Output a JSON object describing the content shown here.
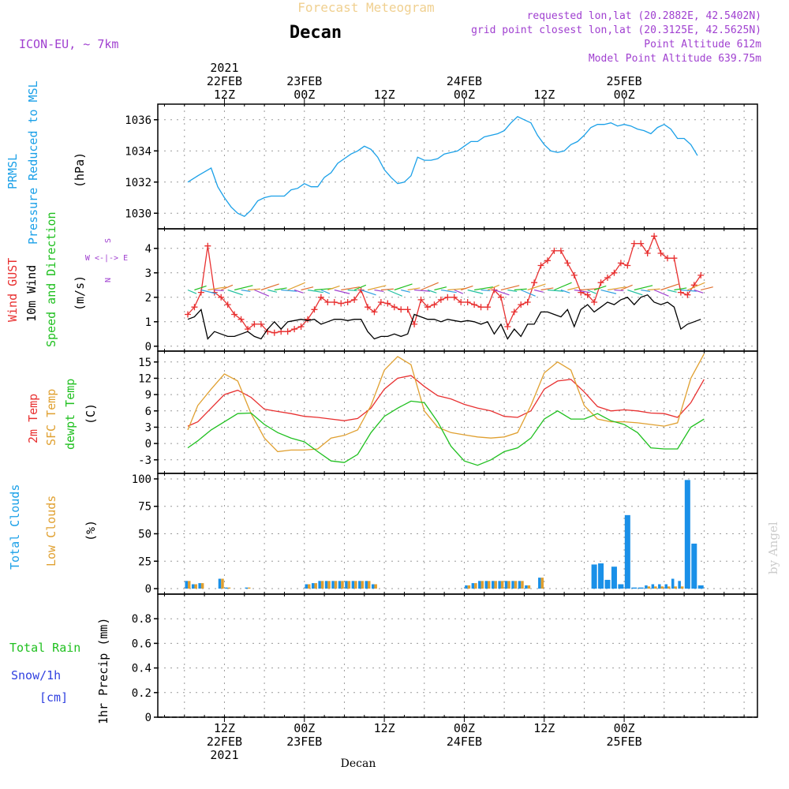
{
  "header": {
    "suptitle": "Forecast Meteogram",
    "title": "Decan",
    "model": "ICON-EU, ~ 7km",
    "requested": "requested lon,lat (20.2882E, 42.5402N)",
    "gridpoint": "grid point closest lon,lat (20.3125E, 42.5625N)",
    "point_alt": "Point Altitude 612m",
    "model_alt": "Model Point Altitude 639.75m",
    "credit": "by Angel",
    "footer": "Decan"
  },
  "colors": {
    "pressure": "#1aa0e8",
    "gust": "#e83030",
    "wind": "#000000",
    "green": "#20c020",
    "sfc": "#e0a030",
    "clouds_total": "#1a90e8",
    "clouds_low": "#e0a030",
    "snow": "#3040e0",
    "purple": "#a040d0"
  },
  "time_axis": {
    "x": [
      -10,
      80
    ],
    "top_ticks": [
      {
        "t": 0,
        "lines": [
          "2021",
          "22FEB",
          "12Z"
        ]
      },
      {
        "t": 12,
        "lines": [
          "23FEB",
          "00Z"
        ]
      },
      {
        "t": 24,
        "lines": [
          "12Z"
        ]
      },
      {
        "t": 36,
        "lines": [
          "24FEB",
          "00Z"
        ]
      },
      {
        "t": 48,
        "lines": [
          "12Z"
        ]
      },
      {
        "t": 60,
        "lines": [
          "25FEB",
          "00Z"
        ]
      }
    ],
    "bottom_ticks": [
      {
        "t": 0,
        "lines": [
          "12Z",
          "22FEB",
          "2021"
        ]
      },
      {
        "t": 12,
        "lines": [
          "00Z",
          "23FEB"
        ]
      },
      {
        "t": 24,
        "lines": [
          "12Z"
        ]
      },
      {
        "t": 36,
        "lines": [
          "00Z",
          "24FEB"
        ]
      },
      {
        "t": 48,
        "lines": [
          "12Z"
        ]
      },
      {
        "t": 60,
        "lines": [
          "00Z",
          "25FEB"
        ]
      }
    ]
  },
  "chart_data": [
    {
      "type": "line",
      "id": "pressure",
      "title_lines": [
        "PRMSL",
        "Pressure Reduced to MSL"
      ],
      "ylabel": "(hPa)",
      "ylim": [
        1029,
        1037
      ],
      "yticks": [
        1030,
        1032,
        1034,
        1036
      ],
      "series": [
        {
          "name": "PRMSL",
          "x": [
            -5.5,
            -4,
            -2,
            -1,
            0,
            1,
            2,
            3,
            4,
            5,
            6,
            7,
            8,
            9,
            10,
            11,
            12,
            13,
            14,
            15,
            16,
            17,
            18,
            19,
            20,
            21,
            22,
            23,
            24,
            25,
            26,
            27,
            28,
            29,
            30,
            31,
            32,
            33,
            34,
            35,
            36,
            37,
            38,
            39,
            40,
            41,
            42,
            43,
            44,
            45,
            46,
            47,
            48,
            49,
            50,
            51,
            52,
            53,
            54,
            55,
            56,
            57,
            58,
            59,
            60,
            61,
            62,
            63,
            64,
            65,
            66,
            67,
            68,
            69,
            70,
            71
          ],
          "y": [
            1032.0,
            1032.4,
            1032.9,
            1031.7,
            1031.0,
            1030.4,
            1030.0,
            1029.8,
            1030.2,
            1030.8,
            1031.0,
            1031.1,
            1031.1,
            1031.1,
            1031.5,
            1031.6,
            1031.9,
            1031.7,
            1031.7,
            1032.3,
            1032.6,
            1033.2,
            1033.5,
            1033.8,
            1034.0,
            1034.3,
            1034.1,
            1033.6,
            1032.8,
            1032.3,
            1031.9,
            1032.0,
            1032.4,
            1033.6,
            1033.4,
            1033.4,
            1033.5,
            1033.8,
            1033.9,
            1034.0,
            1034.3,
            1034.6,
            1034.6,
            1034.9,
            1035.0,
            1035.1,
            1035.3,
            1035.8,
            1036.2,
            1036.0,
            1035.8,
            1035.0,
            1034.4,
            1034.0,
            1033.9,
            1034.0,
            1034.4,
            1034.6,
            1035.0,
            1035.5,
            1035.7,
            1035.7,
            1035.8,
            1035.6,
            1035.7,
            1035.6,
            1035.4,
            1035.3,
            1035.1,
            1035.5,
            1035.7,
            1035.4,
            1034.8,
            1034.8,
            1034.4,
            1033.7
          ]
        }
      ]
    },
    {
      "type": "line",
      "id": "wind",
      "title_lines": [
        "Wind GUST",
        "10m Wind",
        "Speed and Direction"
      ],
      "ylabel": "(m/s)",
      "compass": [
        "N",
        "W <-|-> E",
        "S"
      ],
      "ylim": [
        -0.2,
        4.8
      ],
      "yticks": [
        0,
        1,
        2,
        3,
        4
      ],
      "series": [
        {
          "name": "Wind GUST",
          "x": [
            -5.5,
            -4.5,
            -3.5,
            -2.5,
            -1.5,
            -0.5,
            0.5,
            1.5,
            2.5,
            3.5,
            4.5,
            5.5,
            6.5,
            7.5,
            8.5,
            9.5,
            10.5,
            11.5,
            12.5,
            13.5,
            14.5,
            15.5,
            16.5,
            17.5,
            18.5,
            19.5,
            20.5,
            21.5,
            22.5,
            23.5,
            24.5,
            25.5,
            26.5,
            27.5,
            28.5,
            29.5,
            30.5,
            31.5,
            32.5,
            33.5,
            34.5,
            35.5,
            36.5,
            37.5,
            38.5,
            39.5,
            40.5,
            41.5,
            42.5,
            43.5,
            44.5,
            45.5,
            46.5,
            47.5,
            48.5,
            49.5,
            50.5,
            51.5,
            52.5,
            53.5,
            54.5,
            55.5,
            56.5,
            57.5,
            58.5,
            59.5,
            60.5,
            61.5,
            62.5,
            63.5,
            64.5,
            65.5,
            66.5,
            67.5,
            68.5,
            69.5,
            70.5,
            71.5
          ],
          "y": [
            1.3,
            1.6,
            2.2,
            4.1,
            2.2,
            2.0,
            1.7,
            1.3,
            1.1,
            0.7,
            0.9,
            0.9,
            0.6,
            0.55,
            0.6,
            0.6,
            0.7,
            0.8,
            1.1,
            1.5,
            2.0,
            1.8,
            1.8,
            1.75,
            1.8,
            1.9,
            2.3,
            1.6,
            1.4,
            1.8,
            1.75,
            1.6,
            1.5,
            1.5,
            0.9,
            1.9,
            1.6,
            1.7,
            1.9,
            2.0,
            2.0,
            1.8,
            1.8,
            1.7,
            1.6,
            1.6,
            2.3,
            2.0,
            0.8,
            1.4,
            1.7,
            1.8,
            2.6,
            3.3,
            3.5,
            3.9,
            3.9,
            3.4,
            2.9,
            2.2,
            2.1,
            1.8,
            2.6,
            2.8,
            3.0,
            3.4,
            3.3,
            4.2,
            4.2,
            3.8,
            4.5,
            3.8,
            3.6,
            3.6,
            2.2,
            2.1,
            2.5,
            2.9
          ]
        },
        {
          "name": "10m Wind",
          "x": [
            -5.5,
            -4.5,
            -3.5,
            -2.5,
            -1.5,
            -0.5,
            0.5,
            1.5,
            2.5,
            3.5,
            4.5,
            5.5,
            6.5,
            7.5,
            8.5,
            9.5,
            10.5,
            11.5,
            12.5,
            13.5,
            14.5,
            15.5,
            16.5,
            17.5,
            18.5,
            19.5,
            20.5,
            21.5,
            22.5,
            23.5,
            24.5,
            25.5,
            26.5,
            27.5,
            28.5,
            29.5,
            30.5,
            31.5,
            32.5,
            33.5,
            34.5,
            35.5,
            36.5,
            37.5,
            38.5,
            39.5,
            40.5,
            41.5,
            42.5,
            43.5,
            44.5,
            45.5,
            46.5,
            47.5,
            48.5,
            49.5,
            50.5,
            51.5,
            52.5,
            53.5,
            54.5,
            55.5,
            56.5,
            57.5,
            58.5,
            59.5,
            60.5,
            61.5,
            62.5,
            63.5,
            64.5,
            65.5,
            66.5,
            67.5,
            68.5,
            69.5,
            70.5,
            71.5
          ],
          "y": [
            1.1,
            1.2,
            1.5,
            0.3,
            0.6,
            0.5,
            0.4,
            0.4,
            0.5,
            0.6,
            0.4,
            0.3,
            0.7,
            1.0,
            0.7,
            1.0,
            1.05,
            1.1,
            1.05,
            1.1,
            0.9,
            1.0,
            1.1,
            1.1,
            1.05,
            1.1,
            1.1,
            0.6,
            0.3,
            0.4,
            0.4,
            0.5,
            0.4,
            0.5,
            1.3,
            1.2,
            1.1,
            1.1,
            1.0,
            1.1,
            1.05,
            1.0,
            1.05,
            1.0,
            0.9,
            1.0,
            0.5,
            0.9,
            0.3,
            0.7,
            0.4,
            0.9,
            0.9,
            1.4,
            1.4,
            1.3,
            1.2,
            1.5,
            0.8,
            1.5,
            1.7,
            1.4,
            1.6,
            1.8,
            1.7,
            1.9,
            2.0,
            1.7,
            2.0,
            2.1,
            1.8,
            1.7,
            1.8,
            1.6,
            0.7,
            0.9,
            1.0,
            1.1
          ]
        }
      ]
    },
    {
      "type": "line",
      "id": "temperature",
      "title_lines": [
        "2m Temp",
        "SFC Temp",
        "dewpt Temp"
      ],
      "ylabel": "(C)",
      "ylim": [
        -5.5,
        17
      ],
      "yticks": [
        -3,
        0,
        3,
        6,
        9,
        12,
        15
      ],
      "series": [
        {
          "name": "2m Temp",
          "x": [
            -5.5,
            -4,
            -2,
            0,
            2,
            4,
            6,
            8,
            10,
            12,
            14,
            16,
            18,
            20,
            22,
            24,
            26,
            28,
            30,
            32,
            34,
            36,
            38,
            40,
            42,
            44,
            46,
            48,
            50,
            52,
            54,
            56,
            58,
            60,
            62,
            64,
            66,
            68,
            70,
            72
          ],
          "y": [
            3.2,
            4.0,
            6.5,
            9.0,
            9.8,
            8.5,
            6.3,
            5.9,
            5.5,
            5.0,
            4.8,
            4.5,
            4.2,
            4.6,
            6.5,
            10.0,
            12.0,
            12.5,
            10.5,
            8.8,
            8.2,
            7.2,
            6.5,
            6.0,
            5.0,
            4.8,
            6.0,
            10.0,
            11.5,
            11.8,
            9.5,
            6.8,
            6.0,
            6.2,
            6.0,
            5.6,
            5.5,
            4.8,
            7.5,
            11.8
          ]
        },
        {
          "name": "SFC Temp",
          "x": [
            -5.5,
            -4,
            -2,
            0,
            2,
            4,
            6,
            8,
            10,
            12,
            14,
            16,
            18,
            20,
            22,
            24,
            26,
            28,
            30,
            32,
            34,
            36,
            38,
            40,
            42,
            44,
            46,
            48,
            50,
            52,
            54,
            56,
            58,
            60,
            62,
            64,
            66,
            68,
            70,
            72
          ],
          "y": [
            2.5,
            7.0,
            10.0,
            12.8,
            11.5,
            5.5,
            1.0,
            -1.5,
            -1.2,
            -1.2,
            -1.0,
            1.0,
            1.5,
            2.5,
            7.0,
            13.5,
            16.0,
            14.5,
            6.0,
            3.0,
            2.0,
            1.6,
            1.2,
            1.0,
            1.2,
            2.0,
            7.0,
            13.0,
            15.0,
            13.5,
            7.0,
            4.5,
            4.0,
            4.0,
            3.8,
            3.5,
            3.2,
            3.8,
            12.0,
            16.5
          ]
        },
        {
          "name": "dewpt Temp",
          "x": [
            -5.5,
            -4,
            -2,
            0,
            2,
            4,
            6,
            8,
            10,
            12,
            14,
            16,
            18,
            20,
            22,
            24,
            26,
            28,
            30,
            32,
            34,
            36,
            38,
            40,
            42,
            44,
            46,
            48,
            50,
            52,
            54,
            56,
            58,
            60,
            62,
            64,
            66,
            68,
            70,
            72
          ],
          "y": [
            -0.8,
            0.5,
            2.5,
            4.0,
            5.5,
            5.6,
            3.5,
            2.0,
            1.0,
            0.3,
            -1.5,
            -3.2,
            -3.5,
            -2.0,
            2.0,
            5.0,
            6.5,
            7.8,
            7.5,
            4.0,
            -0.5,
            -3.2,
            -4.0,
            -3.0,
            -1.5,
            -0.8,
            1.0,
            4.5,
            6.0,
            4.5,
            4.5,
            5.5,
            4.2,
            3.5,
            2.0,
            -0.8,
            -1.0,
            -1.0,
            3.0,
            4.5
          ]
        }
      ]
    },
    {
      "type": "bar",
      "id": "clouds",
      "title_lines": [
        "Total Clouds",
        "Low Clouds"
      ],
      "ylabel": "(%)",
      "ylim": [
        -5,
        105
      ],
      "yticks": [
        0,
        25,
        50,
        75,
        100
      ],
      "series": [
        {
          "name": "Total Clouds",
          "x": [
            -5.5,
            -4.5,
            -3.5,
            -0.5,
            0.5,
            3.5,
            12.5,
            13.5,
            14.5,
            15.5,
            16.5,
            17.5,
            18.5,
            19.5,
            20.5,
            21.5,
            22.5,
            36.5,
            37.5,
            38.5,
            39.5,
            40.5,
            41.5,
            42.5,
            43.5,
            44.5,
            45.5,
            47.5,
            55.5,
            56.5,
            57.5,
            58.5,
            59.5,
            60.5,
            61.5,
            62.5,
            63.5,
            64.5,
            65.5,
            66.5,
            67.5,
            68.5,
            69.5,
            70.5,
            71.5
          ],
          "y": [
            7,
            4,
            5,
            9,
            1,
            1,
            4,
            5,
            7,
            7,
            7,
            7,
            7,
            7,
            7,
            7,
            4,
            3,
            5,
            7,
            7,
            7,
            7,
            7,
            7,
            7,
            3,
            10,
            22,
            23,
            8,
            20,
            4,
            67,
            1,
            1,
            3,
            4,
            4,
            4,
            9,
            7,
            99,
            41,
            3
          ]
        },
        {
          "name": "Low Clouds",
          "x": [
            -5.5,
            -4.5,
            -3.5,
            -0.5,
            0.5,
            3.5,
            12.5,
            13.5,
            14.5,
            15.5,
            16.5,
            17.5,
            18.5,
            19.5,
            20.5,
            21.5,
            22.5,
            36.5,
            37.5,
            38.5,
            39.5,
            40.5,
            41.5,
            42.5,
            43.5,
            44.5,
            45.5,
            47.5,
            55.5,
            56.5,
            57.5,
            58.5,
            59.5,
            60.5,
            61.5,
            62.5,
            63.5,
            64.5,
            65.5,
            66.5,
            67.5,
            68.5,
            69.5,
            70.5,
            71.5
          ],
          "y": [
            7,
            4,
            5,
            9,
            1,
            1,
            4,
            5,
            7,
            7,
            7,
            7,
            7,
            7,
            7,
            7,
            4,
            3,
            5,
            7,
            7,
            7,
            7,
            7,
            7,
            7,
            3,
            10,
            0,
            0,
            0,
            0,
            0,
            0,
            0,
            0,
            2,
            2,
            2,
            2,
            2,
            2,
            0,
            0,
            0
          ]
        }
      ]
    },
    {
      "type": "bar",
      "id": "precip",
      "title_lines": [
        "Total Rain",
        "Snow/1h",
        "[cm]"
      ],
      "ylabel": "1hr Precip (mm)",
      "ylim": [
        0,
        1
      ],
      "yticks": [
        0,
        0.2,
        0.4,
        0.6,
        0.8
      ],
      "series": [
        {
          "name": "Total Rain",
          "x": [],
          "y": []
        }
      ]
    }
  ]
}
